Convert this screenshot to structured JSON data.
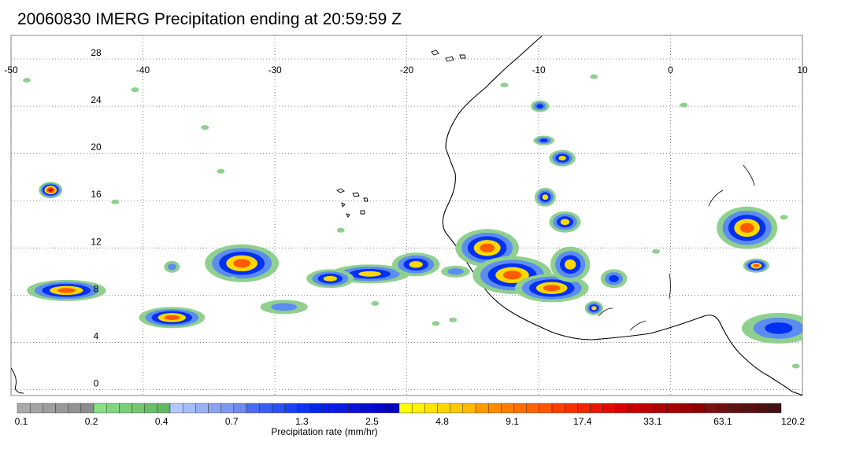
{
  "title": "20060830 IMERG Precipitation ending at 20:59:59 Z",
  "map": {
    "lon_range": [
      -50,
      10
    ],
    "lat_range": [
      -0.5,
      30
    ],
    "lon_ticks": [
      "-50",
      "-40",
      "-30",
      "-20",
      "-10",
      "0",
      "10"
    ],
    "lat_ticks": [
      "28",
      "24",
      "20",
      "16",
      "12",
      "8",
      "4",
      "0"
    ],
    "grid": "dotted"
  },
  "colorbar": {
    "title": "Precipitation rate (mm/hr)",
    "tick_labels": [
      "0.1",
      "0.2",
      "0.4",
      "0.7",
      "1.3",
      "2.5",
      "4.8",
      "9.1",
      "17.4",
      "33.1",
      "63.1",
      "120.2"
    ],
    "colors": [
      "#aaaaaa",
      "#a4a4a4",
      "#9e9e9e",
      "#989898",
      "#929292",
      "#8c8c8c",
      "#86e086",
      "#7fd87f",
      "#78d078",
      "#71c871",
      "#6ac06a",
      "#63b863",
      "#b4c8ff",
      "#a6bcfb",
      "#98b0f7",
      "#8aa4f3",
      "#7c98ef",
      "#6e8ceb",
      "#4a6cf0",
      "#3a5ef0",
      "#2a50f0",
      "#1a42f0",
      "#0a34f0",
      "#0026e8",
      "#0a1ee6",
      "#0818de",
      "#0612d6",
      "#040cce",
      "#0206c6",
      "#0000be",
      "#ffff00",
      "#fff200",
      "#ffe400",
      "#ffd600",
      "#ffc800",
      "#ffba00",
      "#ff9a00",
      "#ff8c00",
      "#ff7e00",
      "#ff7000",
      "#ff6200",
      "#ff5400",
      "#ff3c00",
      "#f83000",
      "#f02400",
      "#e81800",
      "#e00c00",
      "#d80000",
      "#c80000",
      "#bc0000",
      "#b00000",
      "#a40000",
      "#980000",
      "#8c0000",
      "#7c1010",
      "#701010",
      "#641010",
      "#581010",
      "#4c1010",
      "#401010"
    ]
  }
}
